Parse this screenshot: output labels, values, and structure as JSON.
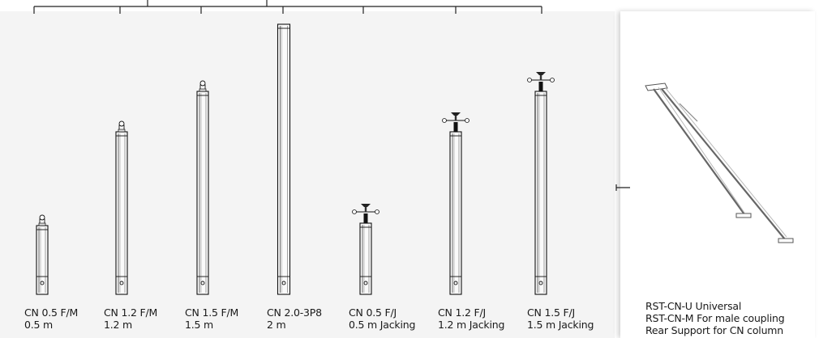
{
  "columns": [
    {
      "model": "CN 0.5 F/M",
      "length": "0.5 m",
      "coupling": "male"
    },
    {
      "model": "CN 1.2 F/M",
      "length": "1.2 m",
      "coupling": "male"
    },
    {
      "model": "CN 1.5 F/M",
      "length": "1.5 m",
      "coupling": "male"
    },
    {
      "model": "CN 2.0-3P8",
      "length": "2 m",
      "coupling": "none"
    },
    {
      "model": "CN 0.5 F/J",
      "length": "0.5 m Jacking",
      "coupling": "jack"
    },
    {
      "model": "CN 1.2 F/J",
      "length": "1.2 m Jacking",
      "coupling": "jack"
    },
    {
      "model": "CN 1.5 F/J",
      "length": "1.5 m Jacking",
      "coupling": "jack"
    }
  ],
  "rear_support": {
    "lines": [
      "RST-CN-U Universal",
      "RST-CN-M For male coupling",
      "Rear Support for CN column"
    ]
  }
}
